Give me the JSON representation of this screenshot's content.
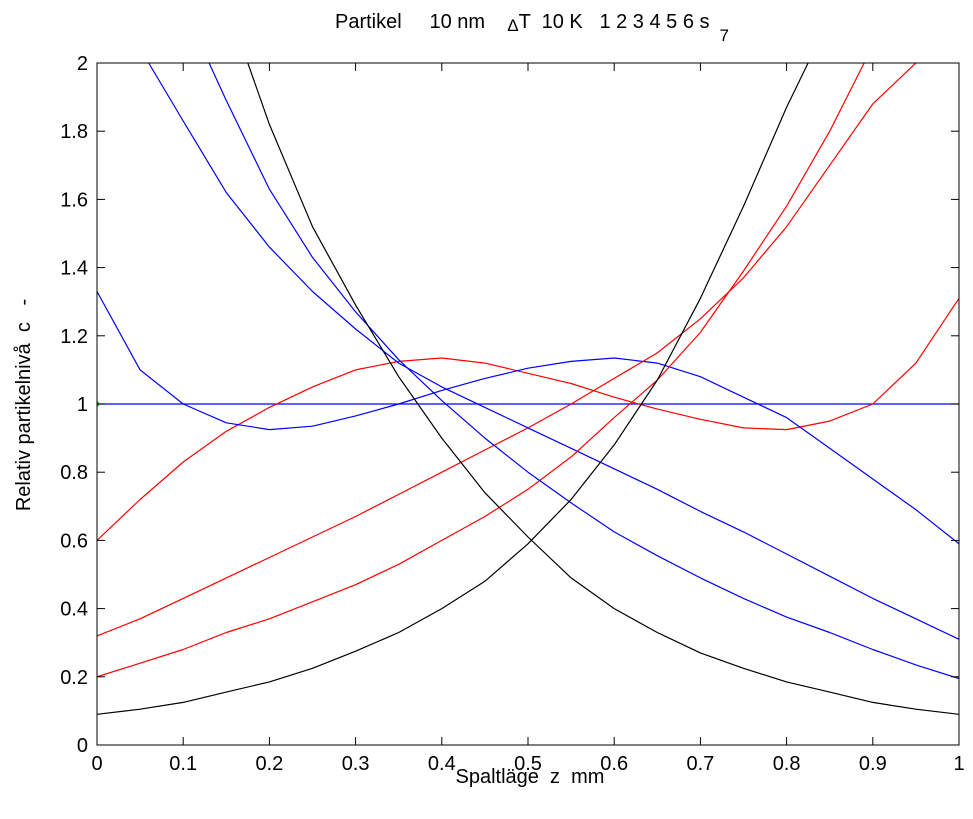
{
  "chart_data": {
    "type": "line",
    "title": {
      "prefix": "Partikel     10 nm    ",
      "delta": "Δ",
      "suffix": "T  10 K   1 2 3 4 5 6 s",
      "subscript": "7"
    },
    "xlabel": "Spaltläge  z  mm",
    "ylabel": "Relativ partikelnivå  c   -",
    "xlim": [
      0,
      1
    ],
    "ylim": [
      0,
      2
    ],
    "xticks": [
      "0",
      "0.1",
      "0.2",
      "0.3",
      "0.4",
      "0.5",
      "0.6",
      "0.7",
      "0.8",
      "0.9",
      "1"
    ],
    "yticks": [
      "0",
      "0.2",
      "0.4",
      "0.6",
      "0.8",
      "1",
      "1.2",
      "1.4",
      "1.6",
      "1.8",
      "2"
    ],
    "grid": false,
    "colors": {
      "black": "#000000",
      "red": "#ff0000",
      "blue": "#0000ff",
      "green": "#00cc00"
    },
    "series": [
      {
        "color": "blue",
        "x": [
          0,
          1
        ],
        "y": [
          1,
          1
        ]
      },
      {
        "color": "red",
        "x": [
          0,
          0.05,
          0.1,
          0.15,
          0.2,
          0.25,
          0.3,
          0.35,
          0.4,
          0.45,
          0.5,
          0.55,
          0.6,
          0.65,
          0.7,
          0.75,
          0.8,
          0.85,
          0.9,
          0.95,
          1.0
        ],
        "y": [
          0.6,
          0.72,
          0.83,
          0.92,
          0.99,
          1.05,
          1.1,
          1.125,
          1.135,
          1.12,
          1.09,
          1.06,
          1.02,
          0.985,
          0.955,
          0.93,
          0.925,
          0.95,
          1.0,
          1.12,
          1.31
        ]
      },
      {
        "color": "blue",
        "x": [
          0,
          0.05,
          0.1,
          0.15,
          0.2,
          0.25,
          0.3,
          0.35,
          0.4,
          0.45,
          0.5,
          0.55,
          0.6,
          0.65,
          0.7,
          0.75,
          0.8,
          0.85,
          0.9,
          0.95,
          1.0
        ],
        "y": [
          1.33,
          1.1,
          1.0,
          0.945,
          0.925,
          0.935,
          0.965,
          1.0,
          1.04,
          1.075,
          1.105,
          1.125,
          1.135,
          1.12,
          1.08,
          1.02,
          0.96,
          0.87,
          0.78,
          0.69,
          0.59
        ]
      },
      {
        "color": "red",
        "x": [
          0,
          0.05,
          0.1,
          0.15,
          0.2,
          0.25,
          0.3,
          0.35,
          0.4,
          0.45,
          0.5,
          0.55,
          0.6,
          0.65,
          0.7,
          0.75,
          0.8,
          0.85,
          0.9,
          0.95
        ],
        "y": [
          0.32,
          0.37,
          0.43,
          0.49,
          0.55,
          0.61,
          0.67,
          0.735,
          0.8,
          0.865,
          0.93,
          1.0,
          1.075,
          1.15,
          1.25,
          1.37,
          1.52,
          1.7,
          1.88,
          2.0
        ]
      },
      {
        "color": "blue",
        "x": [
          0.06,
          0.1,
          0.15,
          0.2,
          0.25,
          0.3,
          0.35,
          0.4,
          0.45,
          0.5,
          0.55,
          0.6,
          0.65,
          0.7,
          0.75,
          0.8,
          0.85,
          0.9,
          0.95,
          1.0
        ],
        "y": [
          2.0,
          1.83,
          1.62,
          1.46,
          1.33,
          1.22,
          1.12,
          1.05,
          0.99,
          0.93,
          0.87,
          0.81,
          0.75,
          0.685,
          0.625,
          0.56,
          0.495,
          0.43,
          0.37,
          0.31
        ]
      },
      {
        "color": "red",
        "x": [
          0,
          0.05,
          0.1,
          0.15,
          0.2,
          0.25,
          0.3,
          0.35,
          0.4,
          0.45,
          0.5,
          0.55,
          0.6,
          0.65,
          0.7,
          0.75,
          0.8,
          0.85,
          0.89
        ],
        "y": [
          0.2,
          0.24,
          0.28,
          0.33,
          0.37,
          0.42,
          0.47,
          0.53,
          0.6,
          0.67,
          0.75,
          0.845,
          0.96,
          1.07,
          1.21,
          1.39,
          1.58,
          1.8,
          2.0
        ]
      },
      {
        "color": "blue",
        "x": [
          0.13,
          0.15,
          0.2,
          0.25,
          0.3,
          0.35,
          0.4,
          0.45,
          0.5,
          0.55,
          0.6,
          0.65,
          0.7,
          0.75,
          0.8,
          0.85,
          0.9,
          0.95,
          1.0
        ],
        "y": [
          2.0,
          1.89,
          1.63,
          1.43,
          1.27,
          1.13,
          1.01,
          0.9,
          0.8,
          0.71,
          0.625,
          0.555,
          0.49,
          0.43,
          0.375,
          0.33,
          0.28,
          0.235,
          0.195
        ]
      },
      {
        "color": "black",
        "x": [
          0,
          0.05,
          0.1,
          0.15,
          0.2,
          0.25,
          0.3,
          0.35,
          0.4,
          0.45,
          0.5,
          0.55,
          0.6,
          0.65,
          0.7,
          0.75,
          0.8,
          0.825
        ],
        "y": [
          0.09,
          0.105,
          0.125,
          0.155,
          0.185,
          0.225,
          0.275,
          0.33,
          0.4,
          0.48,
          0.59,
          0.72,
          0.88,
          1.07,
          1.31,
          1.58,
          1.87,
          2.0
        ]
      },
      {
        "color": "black",
        "x": [
          0.175,
          0.2,
          0.25,
          0.3,
          0.35,
          0.4,
          0.45,
          0.5,
          0.55,
          0.6,
          0.65,
          0.7,
          0.75,
          0.8,
          0.85,
          0.9,
          0.95,
          1.0
        ],
        "y": [
          2.0,
          1.82,
          1.52,
          1.29,
          1.08,
          0.9,
          0.74,
          0.61,
          0.49,
          0.4,
          0.33,
          0.27,
          0.225,
          0.185,
          0.155,
          0.125,
          0.105,
          0.09
        ]
      },
      {
        "color": "green",
        "x": [
          0
        ],
        "y": [
          1
        ],
        "marker": "dot"
      }
    ]
  }
}
